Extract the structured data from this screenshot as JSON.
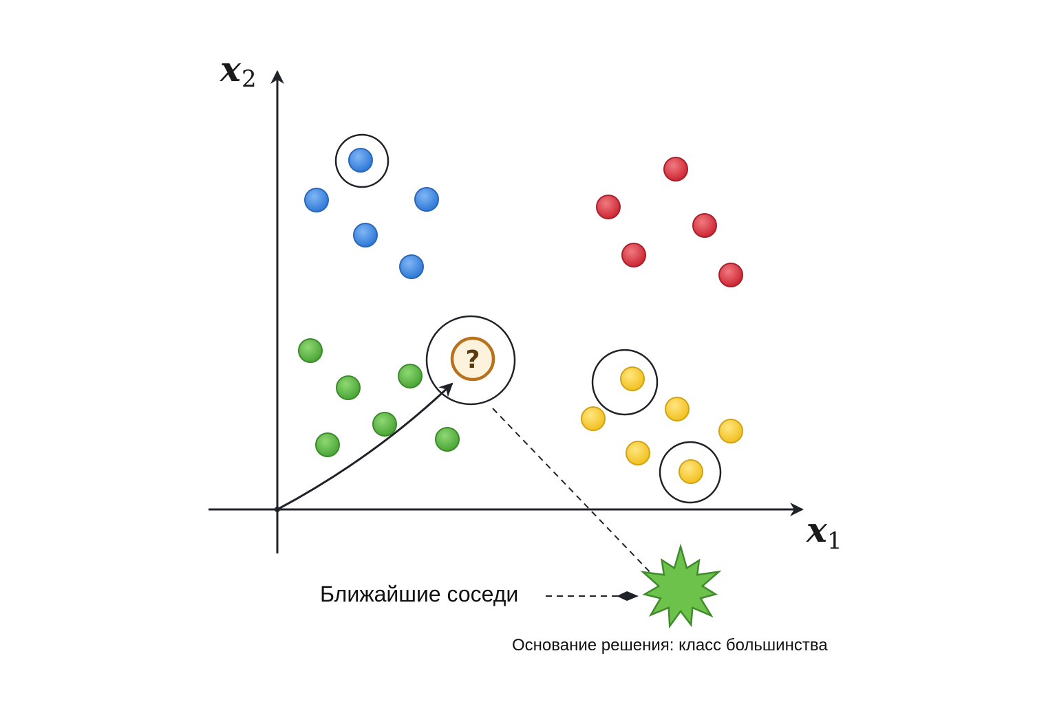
{
  "axes": {
    "x_var": "x",
    "x_sub": "1",
    "y_var": "x",
    "y_sub": "2"
  },
  "query_point": {
    "symbol": "?"
  },
  "labels": {
    "nearest_neighbors": "Ближайшие соседи",
    "decision_basis": "Основание решения: класс большинства"
  },
  "colors": {
    "blue": "#3a86e0",
    "red": "#d9343f",
    "green": "#5cb646",
    "yellow": "#f5cc30",
    "query_ring": "#b8711c",
    "query_fill": "#fdf3dc",
    "star": "#6cc24a",
    "ink": "#1f2329"
  },
  "clusters": [
    {
      "class": "blue",
      "points": 5,
      "highlighted": 1
    },
    {
      "class": "red",
      "points": 5,
      "highlighted": 0
    },
    {
      "class": "green",
      "points": 6,
      "highlighted": 0
    },
    {
      "class": "yellow",
      "points": 6,
      "highlighted": 2
    }
  ]
}
